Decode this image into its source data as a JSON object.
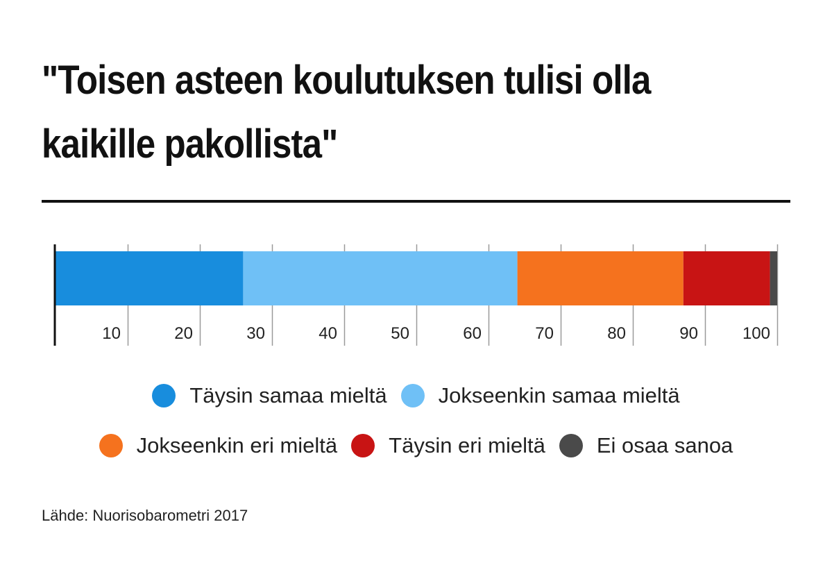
{
  "chart_data": {
    "type": "bar",
    "orientation": "horizontal-stacked",
    "title": "\"Toisen asteen koulutuksen tulisi olla kaikille pakollista\"",
    "xlim": [
      0,
      100
    ],
    "ticks": [
      "10",
      "20",
      "30",
      "40",
      "50",
      "60",
      "70",
      "80",
      "90",
      "100"
    ],
    "series": [
      {
        "name": "Täysin samaa mieltä",
        "value": 26,
        "color": "#188ddd"
      },
      {
        "name": "Jokseenkin samaa mieltä",
        "value": 38,
        "color": "#6fc0f6"
      },
      {
        "name": "Jokseenkin eri mieltä",
        "value": 23,
        "color": "#f5721e"
      },
      {
        "name": "Täysin eri mieltä",
        "value": 12,
        "color": "#c81414"
      },
      {
        "name": "Ei osaa sanoa",
        "value": 1,
        "color": "#4a4a4a"
      }
    ],
    "legend_position": "bottom",
    "source": "Lähde: Nuorisobarometri 2017"
  }
}
